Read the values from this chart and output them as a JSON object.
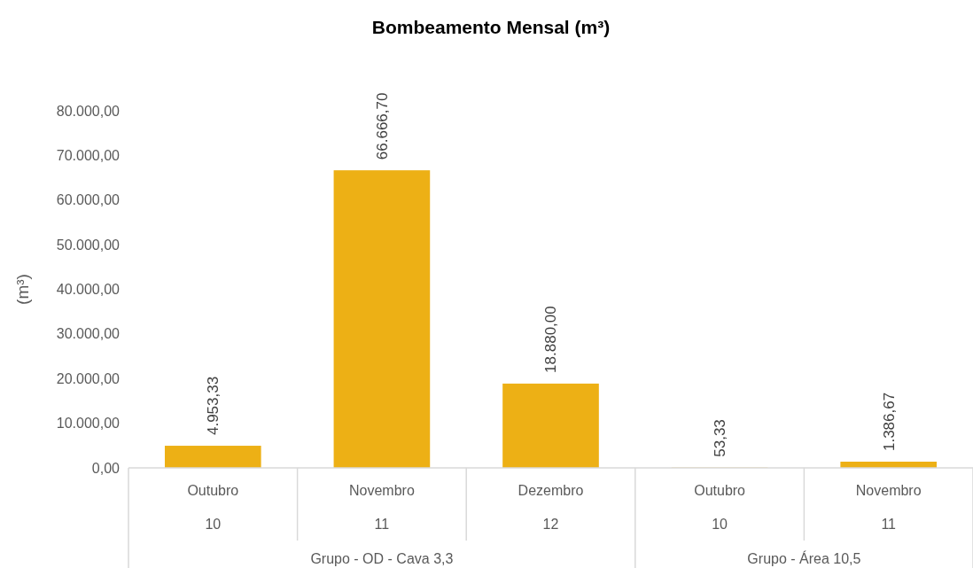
{
  "chart_data": {
    "type": "bar",
    "title": "Bombeamento Mensal (m³)",
    "ylabel": "(m³)",
    "categories": [
      "Outubro",
      "Novembro",
      "Dezembro",
      "Outubro",
      "Novembro"
    ],
    "values": [
      4953.33,
      66666.7,
      18880,
      53.33,
      1386.67
    ],
    "value_labels": [
      "4.953,33",
      "66.666,70",
      "18.880,00",
      "53,33",
      "1.386,67"
    ],
    "color": "#edb015",
    "ylim": [
      0,
      80000
    ],
    "yticks": [
      {
        "value": 0,
        "label": "0,00"
      },
      {
        "value": 10000,
        "label": "10.000,00"
      },
      {
        "value": 20000,
        "label": "20.000,00"
      },
      {
        "value": 30000,
        "label": "30.000,00"
      },
      {
        "value": 40000,
        "label": "40.000,00"
      },
      {
        "value": 50000,
        "label": "50.000,00"
      },
      {
        "value": 60000,
        "label": "60.000,00"
      },
      {
        "value": 70000,
        "label": "70.000,00"
      },
      {
        "value": 80000,
        "label": "80.000,00"
      }
    ],
    "grid": false,
    "annotations": [
      "10",
      "11",
      "12",
      "10",
      "11",
      "Grupo - OD - Cava 3,3",
      "Grupo - Área 10,5"
    ]
  }
}
